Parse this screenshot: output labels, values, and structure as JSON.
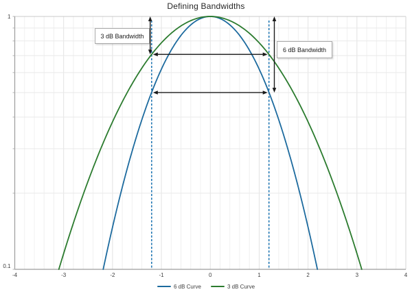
{
  "chart_data": {
    "type": "line",
    "title": "Defining Bandwidths",
    "x_axis": {
      "min": -4,
      "max": 4,
      "tick_labels": [
        "-4",
        "-3",
        "-2",
        "-1",
        "0",
        "1",
        "2",
        "3",
        "4"
      ],
      "minor_gridline_step": 0.2
    },
    "y_axis": {
      "scale": "log10",
      "min": 0.1,
      "max": 1,
      "tick_labels": [
        "1",
        "0.1"
      ],
      "tick_values": [
        1,
        0.1
      ],
      "minor_gridlines": [
        0.9,
        0.8,
        0.7,
        0.6,
        0.5,
        0.4,
        0.3,
        0.2
      ]
    },
    "grid": true,
    "series": [
      {
        "name": "6 dB Curve",
        "color": "#1c6a9e",
        "model": "amplitude_dB(x) = -6 * (x / 1.2)^2  (gaussian on log scale)",
        "drop_db_at_half_bandwidth": 6,
        "half_bandwidth": 1.2,
        "peak": {
          "x": 0,
          "y": 1.0
        },
        "crossing_at_half_level": {
          "y": 0.5,
          "x": [
            -1.2,
            1.2
          ]
        },
        "crossing_at_y_0_1": [
          -2.19,
          2.19
        ]
      },
      {
        "name": "3 dB Curve",
        "color": "#2b7b2e",
        "model": "amplitude_dB(x) = -3 * (x / 1.2)^2  (gaussian on log scale)",
        "drop_db_at_half_bandwidth": 3,
        "half_bandwidth": 1.2,
        "peak": {
          "x": 0,
          "y": 1.0
        },
        "crossing_at_half_level": {
          "y": 0.708,
          "x": [
            -1.2,
            1.2
          ]
        },
        "crossing_at_y_0_1": [
          -3.1,
          3.1
        ]
      }
    ],
    "reference_lines": {
      "style": "dashed",
      "color": "#2077b4",
      "x_values": [
        -1.2,
        1.2
      ]
    },
    "annotations": {
      "labels": [
        {
          "text": "3 dB Bandwidth"
        },
        {
          "text": "6 dB Bandwidth"
        }
      ],
      "arrows": [
        {
          "name": "3db-drop-arrow",
          "orientation": "vertical",
          "x": -1.23,
          "from_y": 1.0,
          "to_y": 0.708
        },
        {
          "name": "6db-drop-arrow",
          "orientation": "vertical",
          "x": 1.31,
          "from_y": 1.0,
          "to_y": 0.5
        },
        {
          "name": "3db-bandwidth-arrow",
          "orientation": "horizontal",
          "y": 0.708,
          "from_x": -1.2,
          "to_x": 1.2
        },
        {
          "name": "6db-bandwidth-arrow",
          "orientation": "horizontal",
          "y": 0.5,
          "from_x": -1.2,
          "to_x": 1.2
        }
      ]
    },
    "legend": {
      "position": "bottom",
      "entries": [
        {
          "label": "6 dB Curve",
          "color": "#1c6a9e"
        },
        {
          "label": "3 dB Curve",
          "color": "#2b7b2e"
        }
      ]
    }
  }
}
